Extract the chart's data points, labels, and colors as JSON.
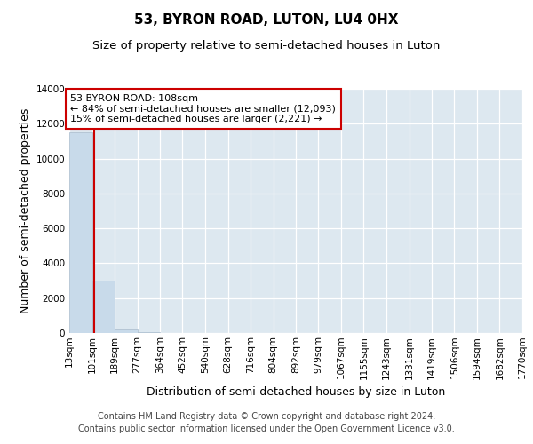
{
  "title": "53, BYRON ROAD, LUTON, LU4 0HX",
  "subtitle": "Size of property relative to semi-detached houses in Luton",
  "xlabel": "Distribution of semi-detached houses by size in Luton",
  "ylabel": "Number of semi-detached properties",
  "bin_edges": [
    13,
    101,
    189,
    277,
    364,
    452,
    540,
    628,
    716,
    804,
    892,
    979,
    1067,
    1155,
    1243,
    1331,
    1419,
    1506,
    1594,
    1682,
    1770
  ],
  "bin_labels": [
    "13sqm",
    "101sqm",
    "189sqm",
    "277sqm",
    "364sqm",
    "452sqm",
    "540sqm",
    "628sqm",
    "716sqm",
    "804sqm",
    "892sqm",
    "979sqm",
    "1067sqm",
    "1155sqm",
    "1243sqm",
    "1331sqm",
    "1419sqm",
    "1506sqm",
    "1594sqm",
    "1682sqm",
    "1770sqm"
  ],
  "bar_heights": [
    11500,
    3000,
    200,
    30,
    10,
    5,
    2,
    1,
    1,
    0,
    0,
    0,
    0,
    0,
    0,
    0,
    0,
    0,
    0,
    0
  ],
  "bar_color": "#c8daea",
  "bar_edge_color": "#aabccc",
  "property_size": 108,
  "vline_color": "#cc0000",
  "ylim": [
    0,
    14000
  ],
  "yticks": [
    0,
    2000,
    4000,
    6000,
    8000,
    10000,
    12000,
    14000
  ],
  "annotation_title": "53 BYRON ROAD: 108sqm",
  "annotation_line1": "← 84% of semi-detached houses are smaller (12,093)",
  "annotation_line2": "15% of semi-detached houses are larger (2,221) →",
  "annotation_box_color": "#cc0000",
  "bg_color": "#dde8f0",
  "grid_color": "#ffffff",
  "title_fontsize": 11,
  "subtitle_fontsize": 9.5,
  "axis_label_fontsize": 9,
  "tick_fontsize": 7.5,
  "annotation_fontsize": 8,
  "footer_fontsize": 7,
  "footer_line1": "Contains HM Land Registry data © Crown copyright and database right 2024.",
  "footer_line2": "Contains public sector information licensed under the Open Government Licence v3.0."
}
